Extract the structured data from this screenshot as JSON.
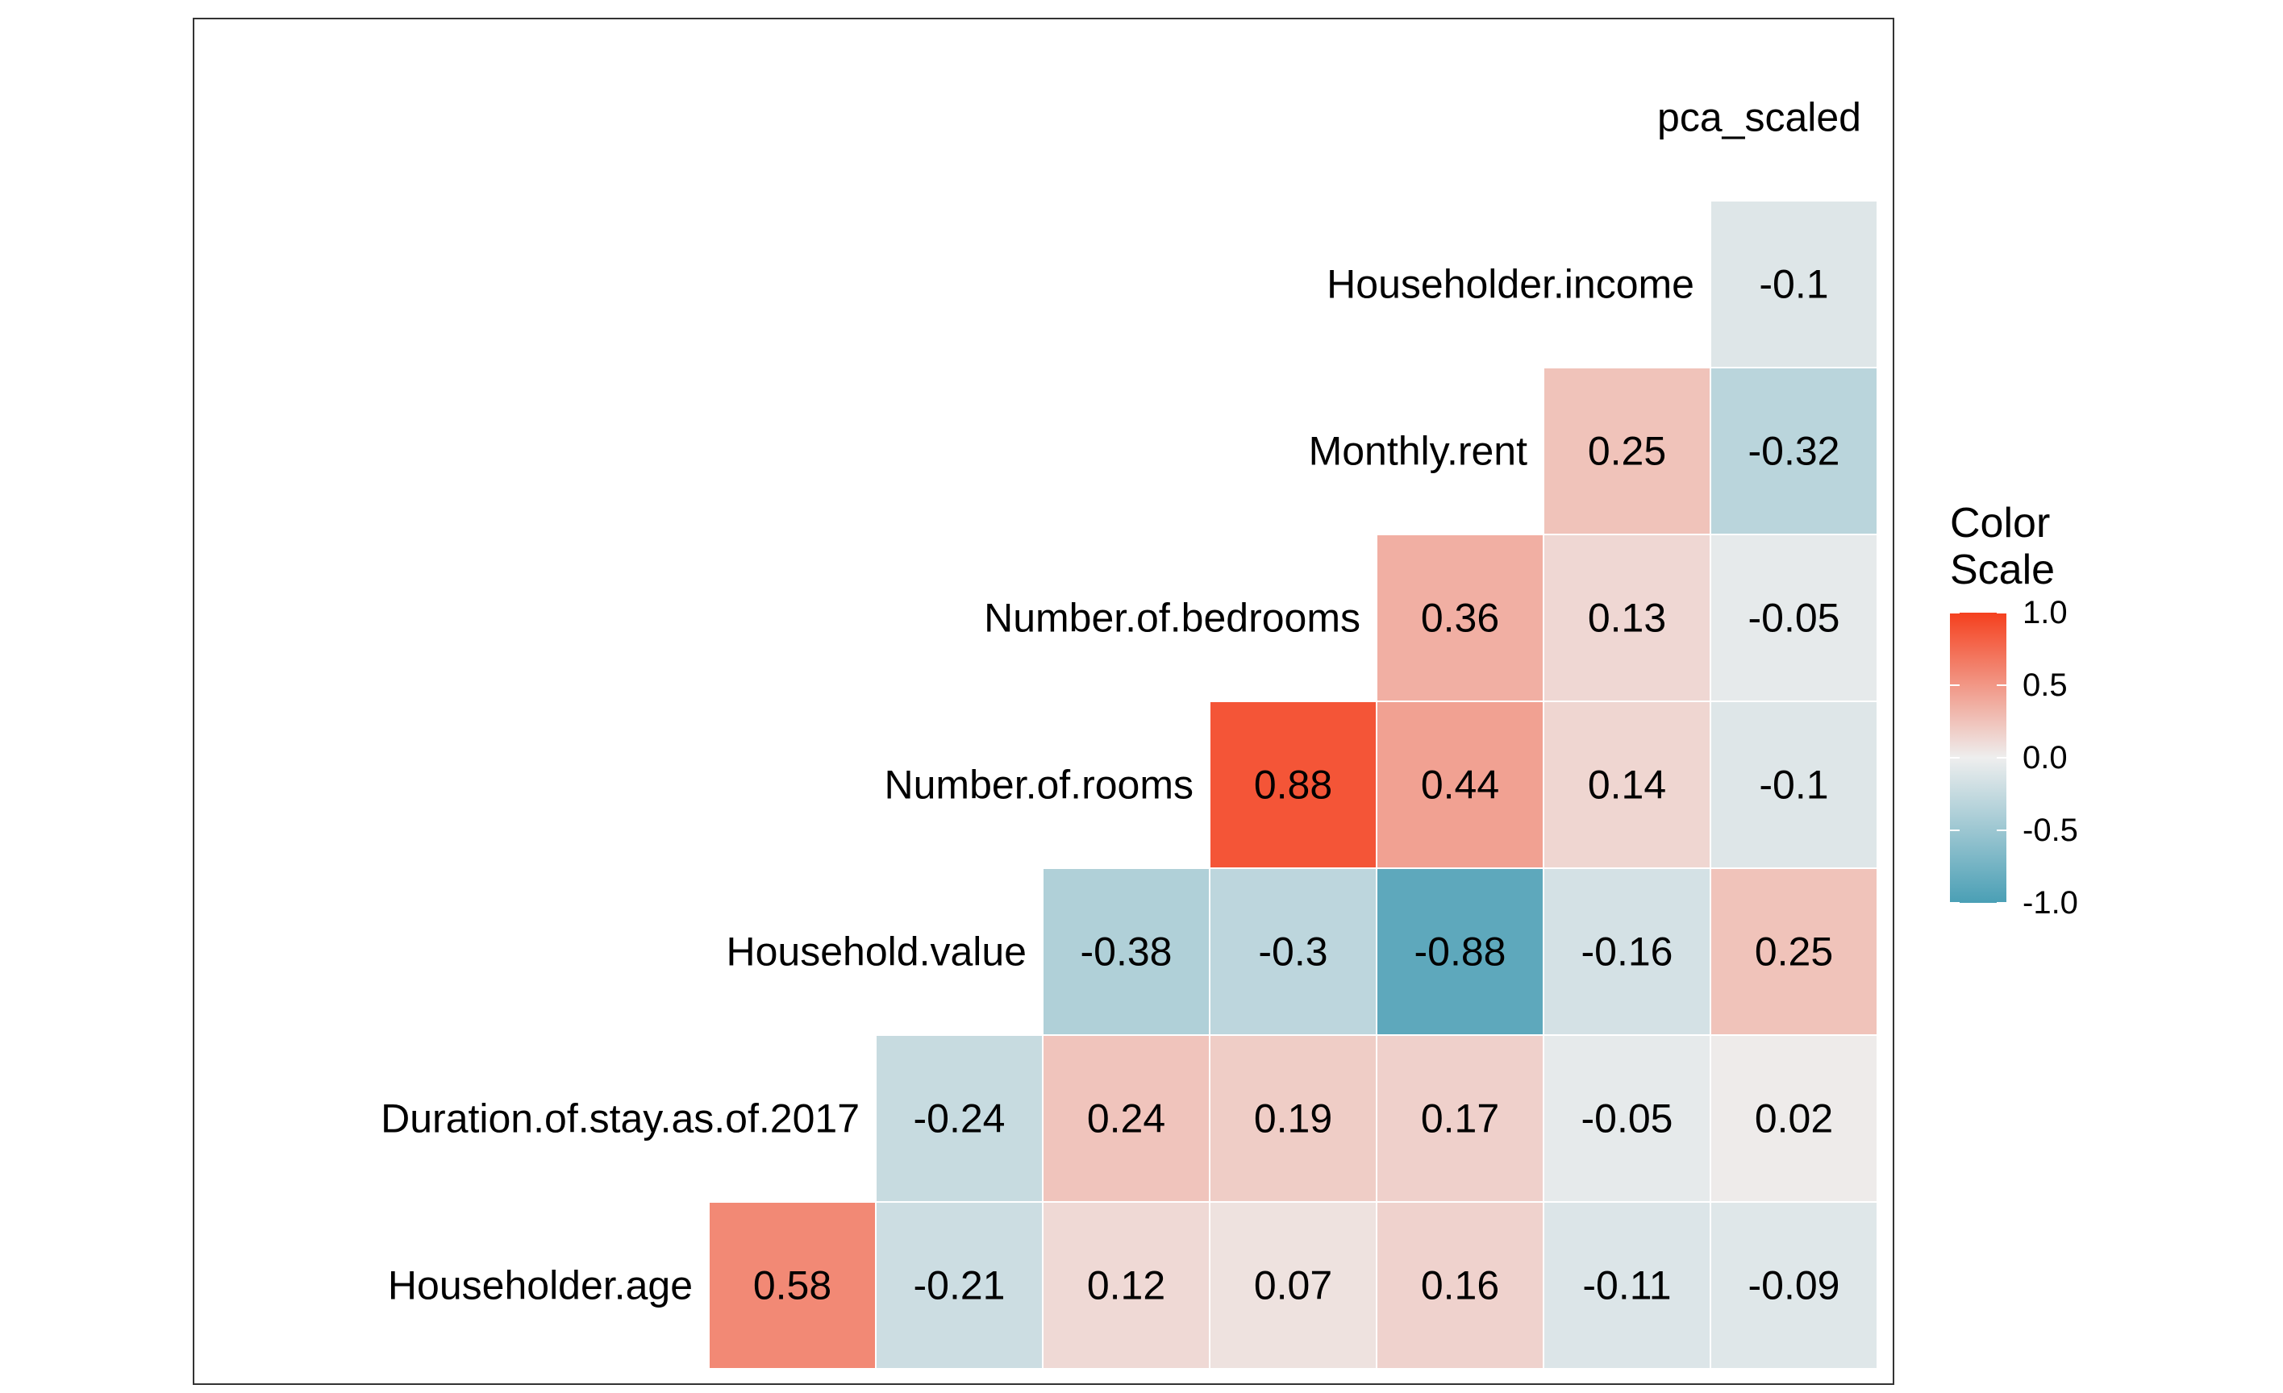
{
  "chart_data": {
    "type": "heatmap",
    "variables": [
      "Householder.age",
      "Duration.of.stay.as.of.2017",
      "Household.value",
      "Number.of.rooms",
      "Number.of.bedrooms",
      "Monthly.rent",
      "Householder.income",
      "pca_scaled"
    ],
    "rows": [
      {
        "label": "Householder.age",
        "values": [
          0.58,
          -0.21,
          0.12,
          0.07,
          0.16,
          -0.11,
          -0.09
        ]
      },
      {
        "label": "Duration.of.stay.as.of.2017",
        "values": [
          -0.24,
          0.24,
          0.19,
          0.17,
          -0.05,
          0.02
        ]
      },
      {
        "label": "Household.value",
        "values": [
          -0.38,
          -0.3,
          -0.88,
          -0.16,
          0.25
        ]
      },
      {
        "label": "Number.of.rooms",
        "values": [
          0.88,
          0.44,
          0.14,
          -0.1
        ]
      },
      {
        "label": "Number.of.bedrooms",
        "values": [
          0.36,
          0.13,
          -0.05
        ]
      },
      {
        "label": "Monthly.rent",
        "values": [
          0.25,
          -0.32
        ]
      },
      {
        "label": "Householder.income",
        "values": [
          -0.1
        ]
      },
      {
        "label": "pca_scaled",
        "values": []
      }
    ],
    "legend": {
      "title_lines": [
        "Color",
        "Scale"
      ],
      "ticks": [
        "1.0",
        "0.5",
        "0.0",
        "-0.5",
        "-1.0"
      ],
      "range": [
        -1,
        1
      ],
      "placement": "right"
    },
    "colors": {
      "low": "#4A9FB5",
      "mid": "#EEEEEE",
      "high": "#F5401E"
    },
    "grid": false
  }
}
